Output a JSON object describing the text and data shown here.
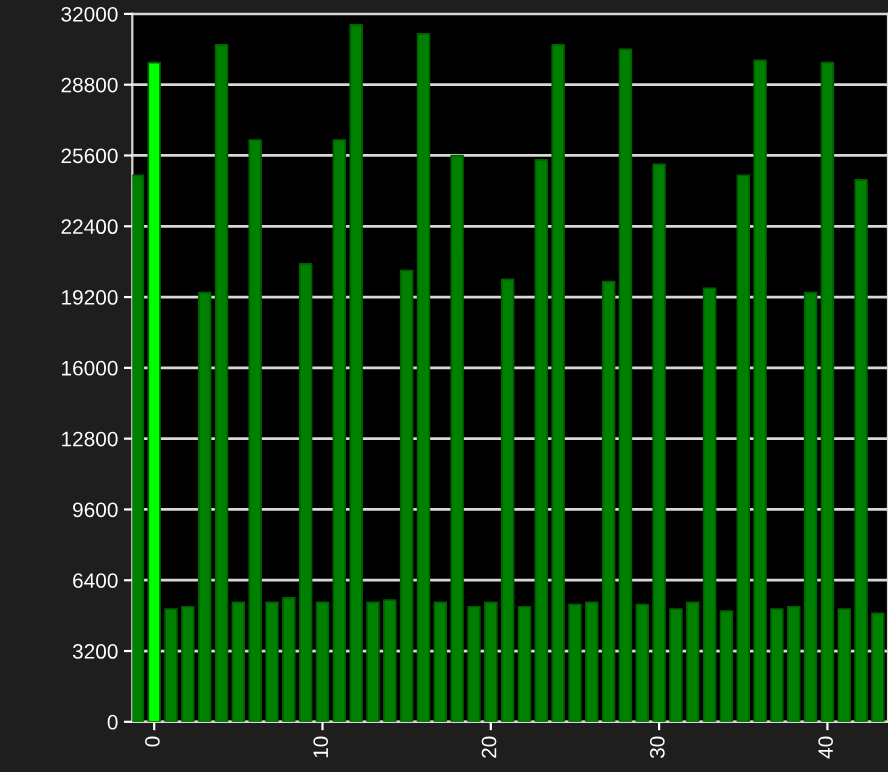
{
  "chart_data": {
    "type": "bar",
    "x": [
      -1,
      0,
      1,
      2,
      3,
      4,
      5,
      6,
      7,
      8,
      9,
      10,
      11,
      12,
      13,
      14,
      15,
      16,
      17,
      18,
      19,
      20,
      21,
      22,
      23,
      24,
      25,
      26,
      27,
      28,
      29,
      30,
      31,
      32,
      33,
      34,
      35,
      36,
      37,
      38,
      39,
      40,
      41,
      42,
      43
    ],
    "values": [
      24700,
      29800,
      5100,
      5200,
      19400,
      30600,
      5400,
      26300,
      5400,
      5600,
      20700,
      5400,
      26300,
      31500,
      5400,
      5500,
      20400,
      31100,
      5400,
      25600,
      5200,
      5400,
      20000,
      5200,
      25400,
      30600,
      5300,
      5400,
      19900,
      30400,
      5300,
      25200,
      5100,
      5400,
      19600,
      5000,
      24700,
      29900,
      5100,
      5200,
      19400,
      29800,
      5100,
      24500,
      4900
    ],
    "colors": [
      "#008000",
      "#00ff00",
      "#008000",
      "#008000",
      "#008000",
      "#008000",
      "#008000",
      "#008000",
      "#008000",
      "#008000",
      "#008000",
      "#008000",
      "#008000",
      "#008000",
      "#008000",
      "#008000",
      "#008000",
      "#008000",
      "#008000",
      "#008000",
      "#008000",
      "#008000",
      "#008000",
      "#008000",
      "#008000",
      "#008000",
      "#008000",
      "#008000",
      "#008000",
      "#008000",
      "#008000",
      "#008000",
      "#008000",
      "#008000",
      "#008000",
      "#008000",
      "#008000",
      "#008000",
      "#008000",
      "#008000",
      "#008000",
      "#008000",
      "#008000",
      "#008000",
      "#008000"
    ],
    "xlim": [
      -1.3,
      43.6
    ],
    "xticks": [
      0,
      10,
      20,
      30,
      40
    ],
    "ylim": [
      0,
      32000
    ],
    "yticks": [
      0,
      3200,
      6400,
      9600,
      12800,
      16000,
      19200,
      22400,
      25600,
      28800,
      32000
    ],
    "grid": "y",
    "legend": false
  }
}
